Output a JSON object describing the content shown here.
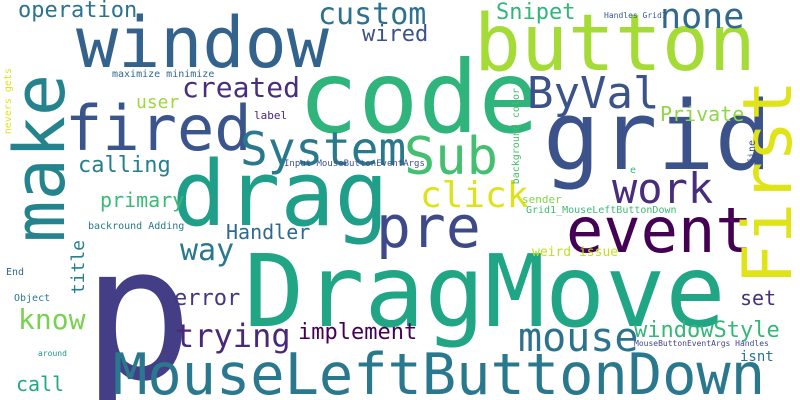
{
  "words": [
    {
      "text": "p",
      "color": "#433e85"
    },
    {
      "text": "DragMove",
      "color": "#21a685"
    },
    {
      "text": "MouseLeftButtonDown",
      "color": "#2a788e"
    },
    {
      "text": "code",
      "color": "#2fb47c"
    },
    {
      "text": "grid",
      "color": "#3b528b"
    },
    {
      "text": "window",
      "color": "#33638d"
    },
    {
      "text": "button",
      "color": "#a5db36"
    },
    {
      "text": "make",
      "color": "#25838e"
    },
    {
      "text": "drag",
      "color": "#1f9e89"
    },
    {
      "text": "event",
      "color": "#440154"
    },
    {
      "text": "First",
      "color": "#dfe318"
    },
    {
      "text": "fired",
      "color": "#39558c"
    },
    {
      "text": "Sub",
      "color": "#44bf70"
    },
    {
      "text": "pre",
      "color": "#3e4989"
    },
    {
      "text": "ByVal",
      "color": "#3b528b"
    },
    {
      "text": "work",
      "color": "#472d7b"
    },
    {
      "text": "System",
      "color": "#2a788e"
    },
    {
      "text": "custom",
      "color": "#2c728e"
    },
    {
      "text": "none",
      "color": "#31688e"
    },
    {
      "text": "click",
      "color": "#dde318"
    },
    {
      "text": "mouse",
      "color": "#2c728e"
    },
    {
      "text": "trying",
      "color": "#482878"
    },
    {
      "text": "operation",
      "color": "#2c738e"
    },
    {
      "text": "created",
      "color": "#472f7d"
    },
    {
      "text": "Snipet",
      "color": "#31b57b"
    },
    {
      "text": "wired",
      "color": "#3b528b"
    },
    {
      "text": "calling",
      "color": "#287d8e"
    },
    {
      "text": "know",
      "color": "#7ad151"
    },
    {
      "text": "way",
      "color": "#2a788e"
    },
    {
      "text": "implement",
      "color": "#440154"
    },
    {
      "text": "windowStyle",
      "color": "#35b779"
    },
    {
      "text": "error",
      "color": "#453781"
    },
    {
      "text": "set",
      "color": "#46307e"
    },
    {
      "text": "Handler",
      "color": "#31688e"
    },
    {
      "text": "primary",
      "color": "#3aba76"
    },
    {
      "text": "Private",
      "color": "#8fd744"
    },
    {
      "text": "user",
      "color": "#9bd93c"
    },
    {
      "text": "call",
      "color": "#22a785"
    },
    {
      "text": "title",
      "color": "#277f8e"
    },
    {
      "text": "isnt",
      "color": "#2c728e"
    },
    {
      "text": "weird issue",
      "color": "#c2df23"
    },
    {
      "text": "maximize minimize",
      "color": "#31688e"
    },
    {
      "text": "backround Adding",
      "color": "#2a788e"
    },
    {
      "text": "Input MouseButtonEventArgs",
      "color": "#3b528b"
    },
    {
      "text": "Grid1_MouseLeftButtonDown",
      "color": "#3dbc74"
    },
    {
      "text": "MouseButtonEventArgs Handles",
      "color": "#404688"
    },
    {
      "text": "background color",
      "color": "#46c06f"
    },
    {
      "text": "label",
      "color": "#482576"
    },
    {
      "text": "sender",
      "color": "#85d54a"
    },
    {
      "text": "Object",
      "color": "#2a788e"
    },
    {
      "text": "End",
      "color": "#2f6c8e"
    },
    {
      "text": "nevers gets",
      "color": "#dfe318"
    },
    {
      "text": "Handles Grid1",
      "color": "#375a8c"
    },
    {
      "text": "fine",
      "color": "#3e4989"
    },
    {
      "text": "e",
      "color": "#38b977"
    },
    {
      "text": "around",
      "color": "#20928c"
    }
  ]
}
